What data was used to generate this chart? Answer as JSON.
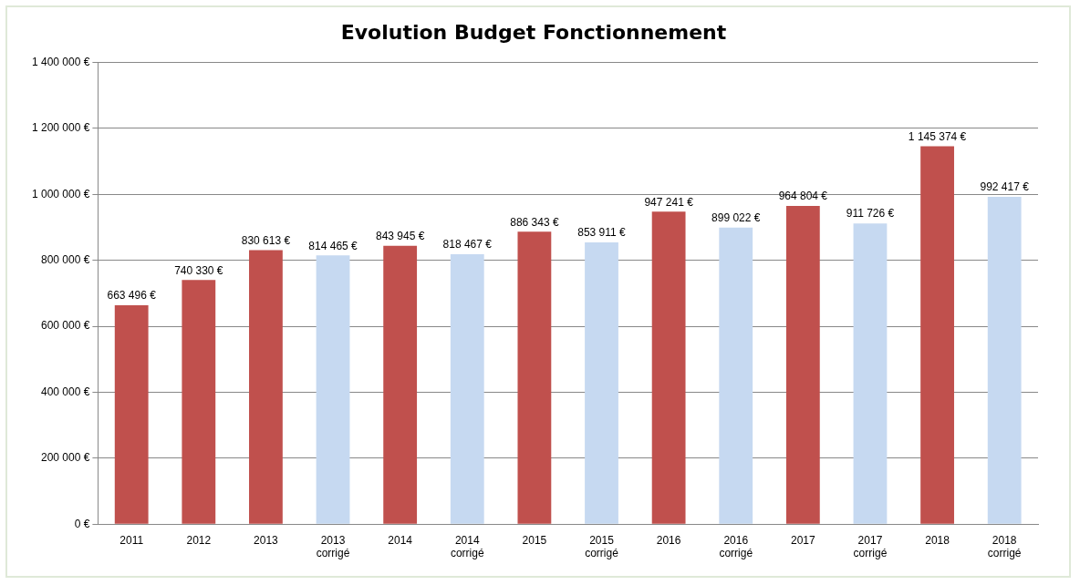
{
  "chart_data": {
    "type": "bar",
    "title": "Evolution Budget Fonctionnement",
    "categories": [
      "2011",
      "2012",
      "2013",
      "2013 corrigé",
      "2014",
      "2014 corrigé",
      "2015",
      "2015 corrigé",
      "2016",
      "2016 corrigé",
      "2017",
      "2017 corrigé",
      "2018",
      "2018 corrigé"
    ],
    "values": [
      663496,
      740330,
      830613,
      814465,
      843945,
      818467,
      886343,
      853911,
      947241,
      899022,
      964804,
      911726,
      1145374,
      992417
    ],
    "colors": [
      "#c0504d",
      "#c0504d",
      "#c0504d",
      "#c6d9f1",
      "#c0504d",
      "#c6d9f1",
      "#c0504d",
      "#c6d9f1",
      "#c0504d",
      "#c6d9f1",
      "#c0504d",
      "#c6d9f1",
      "#c0504d",
      "#c6d9f1"
    ],
    "value_labels": [
      "663 496 €",
      "740 330 €",
      "830 613 €",
      "814 465 €",
      "843 945 €",
      "818 467 €",
      "886 343 €",
      "853 911 €",
      "947 241 €",
      "899 022 €",
      "964 804 €",
      "911 726 €",
      "1 145 374 €",
      "992 417 €"
    ],
    "ylim": [
      0,
      1400000
    ],
    "yticks": [
      {
        "value": 0,
        "label": "0 €"
      },
      {
        "value": 200000,
        "label": "200 000 €"
      },
      {
        "value": 400000,
        "label": "400 000 €"
      },
      {
        "value": 600000,
        "label": "600 000 €"
      },
      {
        "value": 800000,
        "label": "800 000 €"
      },
      {
        "value": 1000000,
        "label": "1 000 000 €"
      },
      {
        "value": 1200000,
        "label": "1 200 000 €"
      },
      {
        "value": 1400000,
        "label": "1 400 000 €"
      }
    ],
    "grid": "y",
    "legend": false
  }
}
